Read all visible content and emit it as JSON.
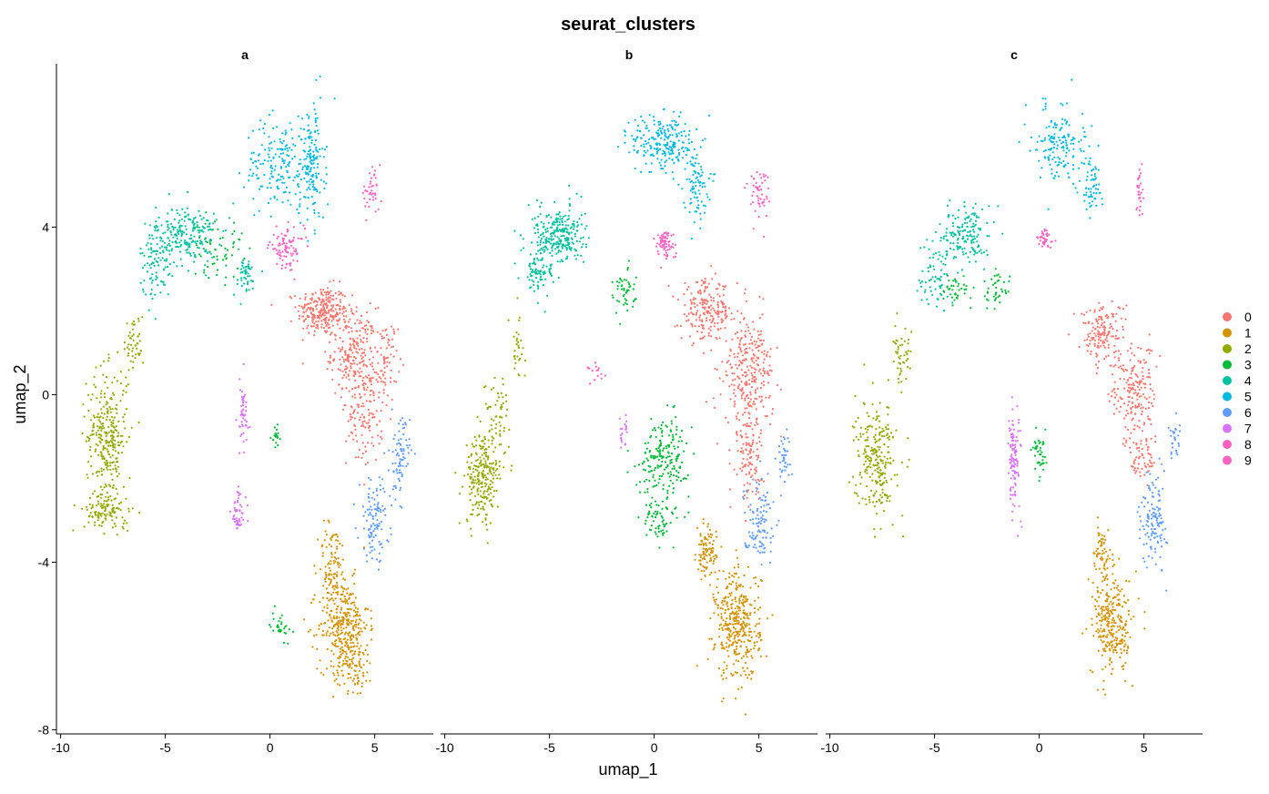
{
  "chart_data": {
    "type": "scatter",
    "title": "seurat_clusters",
    "xlabel": "umap_1",
    "ylabel": "umap_2",
    "xlim": [
      -10.2,
      7.8
    ],
    "ylim": [
      -8.1,
      7.9
    ],
    "xticks": [
      -10,
      -5,
      0,
      5
    ],
    "xtick_labels": [
      "-10",
      "-5",
      "0",
      "5"
    ],
    "yticks": [
      -8,
      -4,
      0,
      4
    ],
    "ytick_labels": [
      "-8",
      "-4",
      "0",
      "4"
    ],
    "grid": false,
    "legend_position": "right",
    "facets": [
      "a",
      "b",
      "c"
    ],
    "clusters": [
      {
        "name": "0",
        "color": "#F8766D"
      },
      {
        "name": "1",
        "color": "#D39200"
      },
      {
        "name": "2",
        "color": "#93AA00"
      },
      {
        "name": "3",
        "color": "#00BA38"
      },
      {
        "name": "4",
        "color": "#00C19F"
      },
      {
        "name": "5",
        "color": "#00B9E3"
      },
      {
        "name": "6",
        "color": "#619CFF"
      },
      {
        "name": "7",
        "color": "#DB72FB"
      },
      {
        "name": "8",
        "color": "#FF61C3"
      },
      {
        "name": "9",
        "color": "#FF61C3"
      }
    ],
    "region_centers": {
      "note_units": "umap coordinates; approximate cluster centroids",
      "0": [
        [
          3.5,
          1.5
        ],
        [
          4.5,
          0.0
        ],
        [
          3.5,
          2.0
        ]
      ],
      "1": [
        [
          3.2,
          -5.5
        ],
        [
          4.0,
          -5.5
        ],
        [
          3.5,
          -5.5
        ]
      ],
      "2": [
        [
          -7.8,
          -1.0
        ],
        [
          -8.2,
          -2.0
        ],
        [
          -7.8,
          -1.5
        ]
      ],
      "3": [
        [
          -2.0,
          2.0
        ],
        [
          0.5,
          -1.5
        ],
        [
          0.0,
          -1.5
        ]
      ],
      "4": [
        [
          -4.0,
          3.5
        ],
        [
          -4.5,
          3.8
        ],
        [
          -3.5,
          3.5
        ]
      ],
      "5": [
        [
          1.5,
          5.5
        ],
        [
          0.5,
          6.0
        ],
        [
          1.0,
          6.0
        ]
      ],
      "6": [
        [
          6.0,
          -2.5
        ],
        [
          6.0,
          -2.5
        ],
        [
          5.5,
          -3.0
        ]
      ],
      "7": [
        [
          -1.3,
          -2.0
        ],
        [
          -1.5,
          -1.0
        ],
        [
          -1.2,
          -1.5
        ]
      ],
      "8": [
        [
          0.8,
          3.5
        ],
        [
          0.5,
          3.6
        ],
        [
          0.3,
          3.7
        ]
      ],
      "9": [
        [
          4.8,
          4.8
        ],
        [
          5.0,
          4.8
        ],
        [
          4.8,
          4.8
        ]
      ]
    }
  }
}
